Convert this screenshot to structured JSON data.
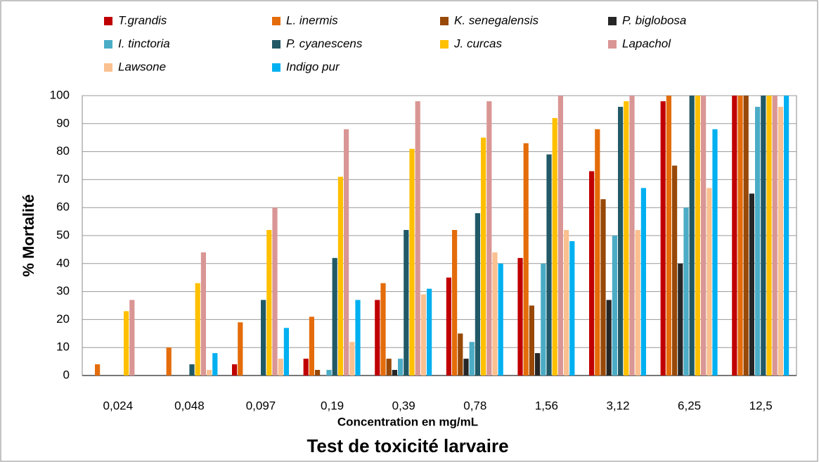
{
  "chart_data": {
    "type": "bar",
    "title": "Test de toxicité larvaire",
    "x_label": "Concentration en mg/mL",
    "y_label": "% Mortalité",
    "categories": [
      "0,024",
      "0,048",
      "0,097",
      "0,19",
      "0,39",
      "0,78",
      "1,56",
      "3,12",
      "6,25",
      "12,5"
    ],
    "series": [
      {
        "name": "T.grandis",
        "color": "#c00000",
        "values": [
          0,
          0,
          4,
          6,
          27,
          35,
          42,
          73,
          98,
          100
        ]
      },
      {
        "name": "L. inermis",
        "color": "#e46c0a",
        "values": [
          4,
          10,
          19,
          21,
          33,
          52,
          83,
          88,
          100,
          100
        ]
      },
      {
        "name": "K. senegalensis",
        "color": "#984807",
        "values": [
          0,
          0,
          0,
          2,
          6,
          15,
          25,
          63,
          75,
          100
        ]
      },
      {
        "name": "P. biglobosa",
        "color": "#262626",
        "values": [
          0,
          0,
          0,
          0,
          2,
          6,
          8,
          27,
          40,
          65
        ]
      },
      {
        "name": "I. tinctoria",
        "color": "#4bacc6",
        "values": [
          0,
          0,
          0,
          2,
          6,
          12,
          40,
          50,
          60,
          96
        ]
      },
      {
        "name": "P. cyanescens",
        "color": "#215967",
        "values": [
          0,
          4,
          27,
          42,
          52,
          58,
          79,
          96,
          100,
          100
        ]
      },
      {
        "name": "J. curcas",
        "color": "#ffc000",
        "values": [
          23,
          33,
          52,
          71,
          81,
          85,
          92,
          98,
          100,
          100
        ]
      },
      {
        "name": "Lapachol",
        "color": "#d99694",
        "values": [
          27,
          44,
          60,
          88,
          98,
          98,
          100,
          100,
          100,
          100
        ]
      },
      {
        "name": "Lawsone",
        "color": "#fac090",
        "values": [
          0,
          2,
          6,
          12,
          29,
          44,
          52,
          52,
          67,
          96
        ]
      },
      {
        "name": "Indigo pur",
        "color": "#00b0f0",
        "values": [
          0,
          8,
          17,
          27,
          31,
          40,
          48,
          67,
          88,
          100
        ]
      }
    ],
    "ylim": [
      0,
      100
    ],
    "yticks": [
      0,
      10,
      20,
      30,
      40,
      50,
      60,
      70,
      80,
      90,
      100
    ],
    "grid": true
  }
}
